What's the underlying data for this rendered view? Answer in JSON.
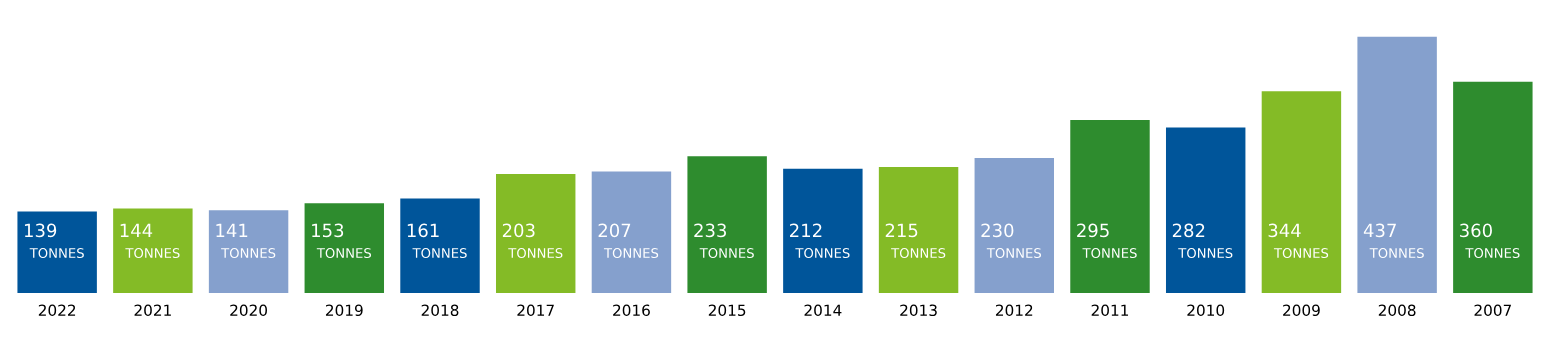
{
  "chart_data": {
    "type": "bar",
    "categories": [
      "2022",
      "2021",
      "2020",
      "2019",
      "2018",
      "2017",
      "2016",
      "2015",
      "2014",
      "2013",
      "2012",
      "2011",
      "2010",
      "2009",
      "2008",
      "2007"
    ],
    "values": [
      139,
      144,
      141,
      153,
      161,
      203,
      207,
      233,
      212,
      215,
      230,
      295,
      282,
      344,
      437,
      360
    ],
    "colors": [
      "#00559a",
      "#84bb26",
      "#85a0cd",
      "#2e8c2e",
      "#00559a",
      "#84bb26",
      "#85a0cd",
      "#2e8c2e",
      "#00559a",
      "#84bb26",
      "#85a0cd",
      "#2e8c2e",
      "#00559a",
      "#84bb26",
      "#85a0cd",
      "#2e8c2e"
    ],
    "value_labels": [
      "139\nTONNES",
      "144\nTONNES",
      "141\nTONNES",
      "153\nTONNES",
      "161\nTONNES",
      "203\nTONNES",
      "207\nTONNES",
      "233\nTONNES",
      "212\nTONNES",
      "215\nTONNES",
      "230\nTONNES",
      "295\nTONNES",
      "282\nTONNES",
      "344\nTONNES",
      "437\nTONNES",
      "360\nTONNES"
    ],
    "grid": false,
    "legend": false
  }
}
